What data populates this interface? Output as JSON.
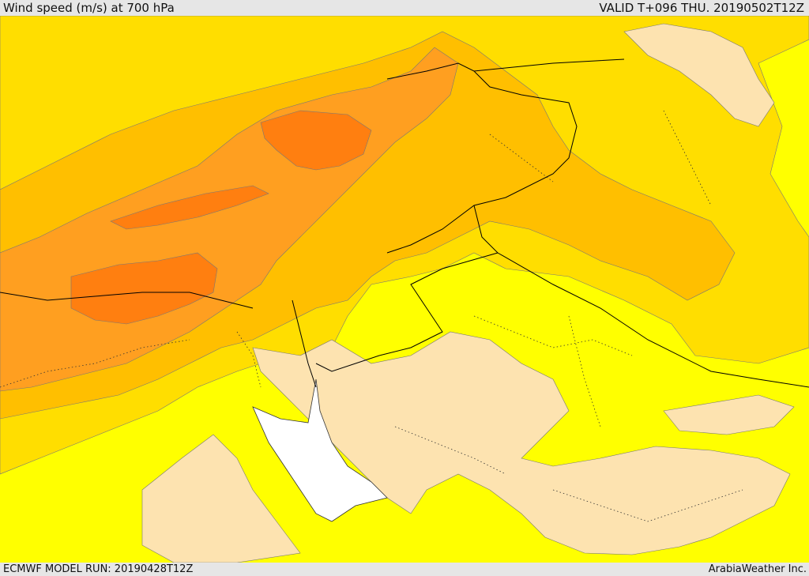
{
  "header": {
    "title": "Wind speed (m/s) at 700 hPa",
    "valid_time": "VALID T+096 THU. 20190502T12Z"
  },
  "footer": {
    "model_run": "ECMWF MODEL RUN: 20190428T12Z",
    "credit": "ArabiaWeather Inc."
  },
  "map": {
    "palette": {
      "calm": "#fde3b0",
      "light": "#ffff00",
      "moderate": "#ffde00",
      "fresh": "#ffbf00",
      "strong": "#ff9f20",
      "very_strong": "#ff7f10",
      "sea_no_data": "#ffffff",
      "borders": "#000000"
    }
  }
}
